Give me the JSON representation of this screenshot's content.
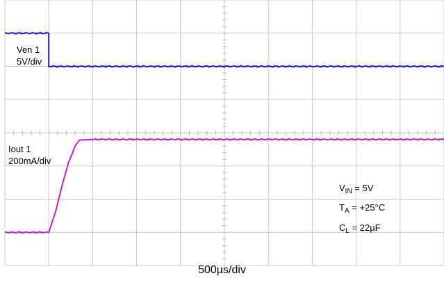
{
  "chart_data": {
    "type": "line",
    "title": "",
    "grid": true,
    "divisions": {
      "x": 10,
      "y": 8
    },
    "xlabel": "500µs/div",
    "series": [
      {
        "name": "Ven 1",
        "scale": "5V/div",
        "color": "#1a1adc",
        "unit": "div",
        "x_div": [
          0,
          1.0,
          1.0,
          10
        ],
        "y_div": [
          7.0,
          7.0,
          6.0,
          6.0
        ]
      },
      {
        "name": "Iout 1",
        "scale": "200mA/div",
        "color": "#c020d0",
        "unit": "div",
        "x_div": [
          0,
          1.0,
          1.15,
          1.3,
          1.45,
          1.6,
          1.7,
          2.0,
          10
        ],
        "y_div": [
          1.0,
          1.0,
          1.6,
          2.4,
          3.1,
          3.6,
          3.78,
          3.8,
          3.8
        ]
      }
    ],
    "annotations": {
      "vin": {
        "main": "V",
        "sub": "IN",
        "rest": " = 5V"
      },
      "ta": {
        "main": "T",
        "sub": "A",
        "rest": " = +25°C"
      },
      "cl": {
        "main": "C",
        "sub": "L",
        "rest": " = 22µF"
      }
    }
  }
}
